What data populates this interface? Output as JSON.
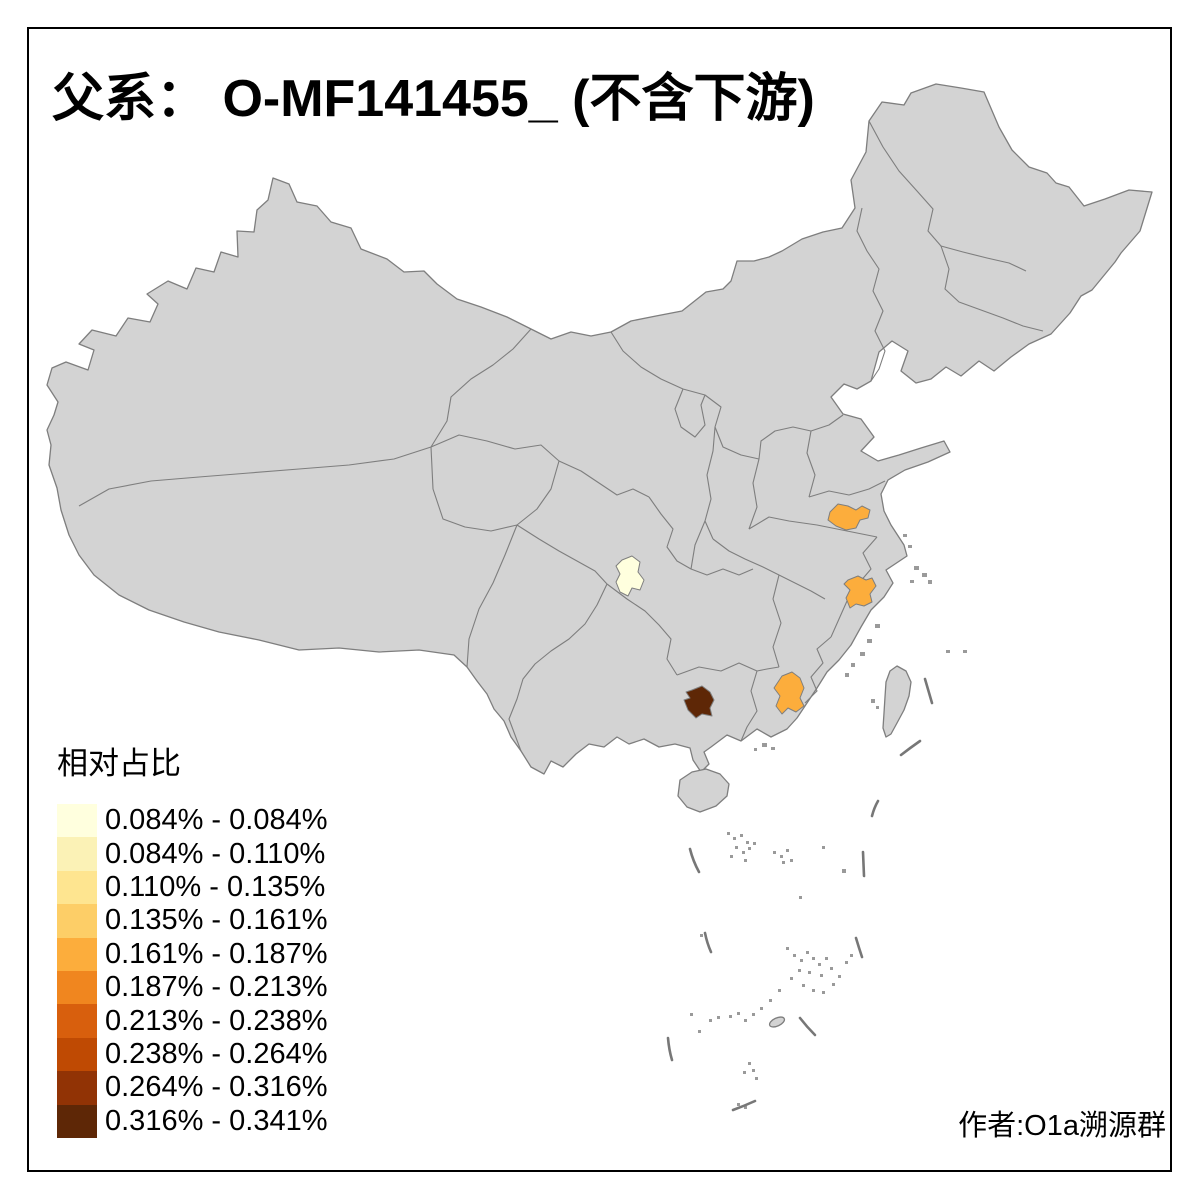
{
  "title": "父系：  O-MF141455_ (不含下游)",
  "legend": {
    "title": "相对占比",
    "classes": [
      {
        "range": "0.084% - 0.084%",
        "color": "#FFFFDE"
      },
      {
        "range": "0.084% - 0.110%",
        "color": "#FBF2B6"
      },
      {
        "range": "0.110% - 0.135%",
        "color": "#FEE590"
      },
      {
        "range": "0.135% - 0.161%",
        "color": "#FDCE67"
      },
      {
        "range": "0.161% - 0.187%",
        "color": "#FCAD3C"
      },
      {
        "range": "0.187% - 0.213%",
        "color": "#F0861F"
      },
      {
        "range": "0.213% - 0.238%",
        "color": "#D85F0D"
      },
      {
        "range": "0.238% - 0.264%",
        "color": "#BF4A03"
      },
      {
        "range": "0.264% - 0.316%",
        "color": "#913305"
      },
      {
        "range": "0.316% - 0.341%",
        "color": "#5E2706"
      }
    ]
  },
  "map": {
    "land_fill": "#D3D3D3",
    "border_color": "#7E7E7E",
    "dash_line_color": "#777777",
    "regions": [
      {
        "name": "region-central-pale",
        "legend_class": 0
      },
      {
        "name": "region-east-orange",
        "legend_class": 4
      },
      {
        "name": "region-southeast-orange",
        "legend_class": 4
      },
      {
        "name": "region-south-orange",
        "legend_class": 4
      },
      {
        "name": "region-southwest-dark",
        "legend_class": 9
      }
    ]
  },
  "attribution": "作者:O1a溯源群"
}
